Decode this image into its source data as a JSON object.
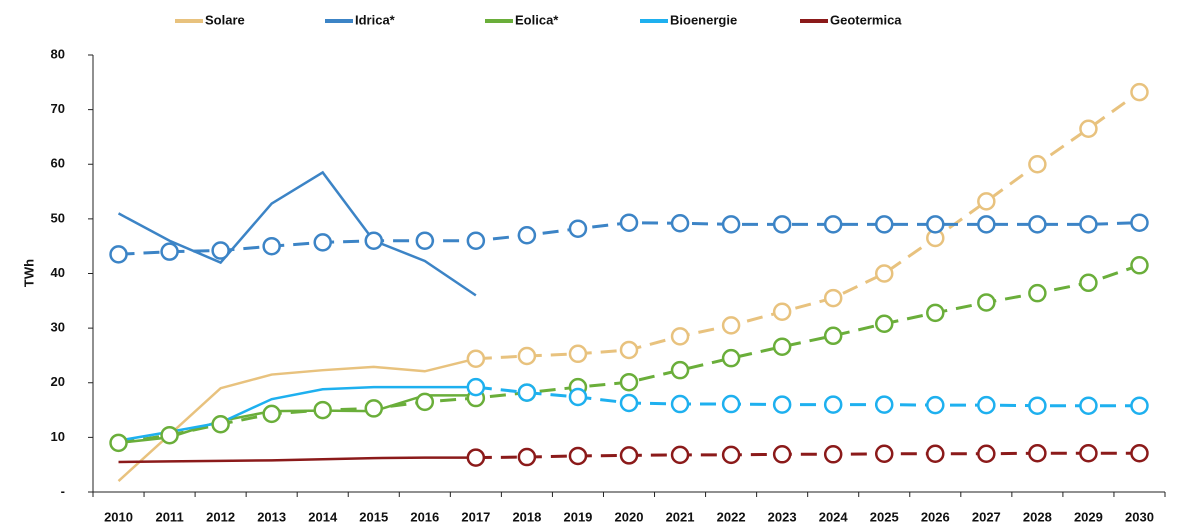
{
  "chart_data": {
    "type": "line",
    "y_label": "TWh",
    "categories": [
      "2010",
      "2011",
      "2012",
      "2013",
      "2014",
      "2015",
      "2016",
      "2017",
      "2018",
      "2019",
      "2020",
      "2021",
      "2022",
      "2023",
      "2024",
      "2025",
      "2026",
      "2027",
      "2028",
      "2029",
      "2030"
    ],
    "ylim": [
      0,
      80
    ],
    "yticks": [
      {
        "value": 0,
        "label": "-"
      },
      10,
      20,
      30,
      40,
      50,
      60,
      70,
      80
    ],
    "legend": "top",
    "series": [
      {
        "name": "Solare",
        "color": "#e8c27e",
        "values": [
          2,
          10.5,
          19,
          21.5,
          22.3,
          22.9,
          22.1,
          24.4,
          null,
          null,
          null,
          null,
          null,
          null,
          null,
          null,
          null,
          null,
          null,
          null,
          null
        ],
        "forecast": [
          null,
          null,
          null,
          null,
          null,
          null,
          null,
          24.4,
          24.9,
          25.3,
          26,
          28.5,
          30.5,
          33,
          35.5,
          40,
          46.5,
          53.2,
          60,
          66.5,
          73.2
        ]
      },
      {
        "name": "Idrica*",
        "color": "#3c84c6",
        "values": [
          51,
          46,
          42,
          52.8,
          58.5,
          46,
          42.3,
          36,
          null,
          null,
          null,
          null,
          null,
          null,
          null,
          null,
          null,
          null,
          null,
          null,
          null
        ],
        "forecast": [
          43.5,
          44,
          44.2,
          45,
          45.7,
          46,
          46,
          46,
          47,
          48.2,
          49.3,
          49.2,
          49,
          49,
          49,
          49,
          49,
          49,
          49,
          49,
          49.3
        ]
      },
      {
        "name": "Eolica*",
        "color": "#6aae3a",
        "values": [
          9,
          10,
          13,
          14.8,
          14.9,
          14.8,
          17.7,
          17.7,
          null,
          null,
          null,
          null,
          null,
          null,
          null,
          null,
          null,
          null,
          null,
          null,
          null
        ],
        "forecast": [
          9,
          10.4,
          12.4,
          14.3,
          15,
          15.3,
          16.5,
          17.2,
          18.2,
          19.2,
          20.1,
          22.3,
          24.5,
          26.6,
          28.6,
          30.8,
          32.8,
          34.7,
          36.4,
          38.3,
          41.5
        ]
      },
      {
        "name": "Bioenergie",
        "color": "#1eb0ef",
        "values": [
          9.4,
          11,
          12.7,
          17,
          18.8,
          19.2,
          19.2,
          19.2,
          null,
          null,
          null,
          null,
          null,
          null,
          null,
          null,
          null,
          null,
          null,
          null,
          null
        ],
        "forecast": [
          null,
          null,
          null,
          null,
          null,
          null,
          null,
          19.2,
          18.2,
          17.4,
          16.3,
          16.1,
          16.1,
          16,
          16,
          16,
          15.9,
          15.9,
          15.8,
          15.8,
          15.8
        ]
      },
      {
        "name": "Geotermica",
        "color": "#8b1a1a",
        "values": [
          5.5,
          5.6,
          5.7,
          5.8,
          6,
          6.2,
          6.3,
          6.3,
          null,
          null,
          null,
          null,
          null,
          null,
          null,
          null,
          null,
          null,
          null,
          null,
          null
        ],
        "forecast": [
          null,
          null,
          null,
          null,
          null,
          null,
          null,
          6.3,
          6.4,
          6.6,
          6.7,
          6.8,
          6.8,
          6.9,
          6.9,
          7,
          7,
          7,
          7.1,
          7.1,
          7.1
        ]
      }
    ]
  }
}
